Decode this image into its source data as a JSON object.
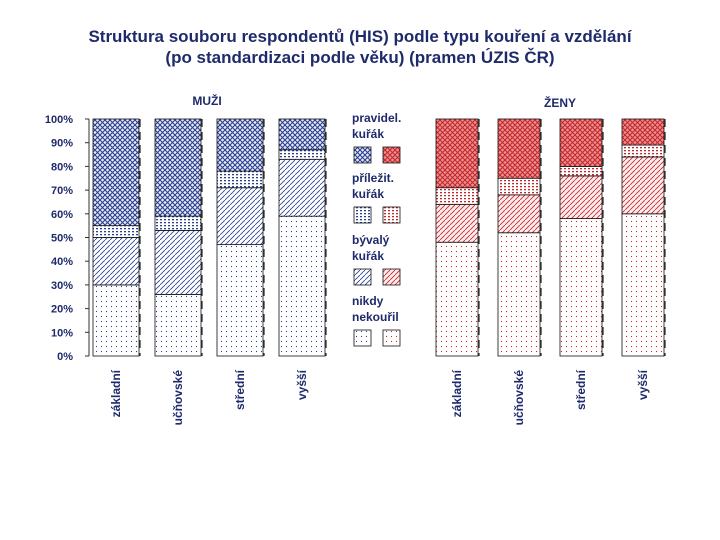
{
  "title_line1": "Struktura souboru respondentů (HIS) podle typu kouření a vzdělání",
  "title_line2": "(po standardizaci podle věku) (pramen ÚZIS ČR)",
  "colors": {
    "men": "#2a3f8f",
    "women": "#c0262c",
    "text": "#1f2a6b",
    "axis": "#333333"
  },
  "chart_data": [
    {
      "type": "bar",
      "stacked": true,
      "title": "MUŽI",
      "categories": [
        "základní",
        "učňovské",
        "střední",
        "vyšší"
      ],
      "ylim": [
        0,
        100
      ],
      "yticks": [
        "0%",
        "10%",
        "20%",
        "30%",
        "40%",
        "50%",
        "60%",
        "70%",
        "80%",
        "90%",
        "100%"
      ],
      "grid": false,
      "series": [
        {
          "name": "nikdy nekouřil",
          "values": [
            30,
            26,
            47,
            59
          ]
        },
        {
          "name": "bývalý kuřák",
          "values": [
            20,
            27,
            24,
            24
          ]
        },
        {
          "name": "příležit. kuřák",
          "values": [
            5,
            6,
            7,
            4
          ]
        },
        {
          "name": "pravidel. kuřák",
          "values": [
            45,
            41,
            22,
            13
          ]
        }
      ]
    },
    {
      "type": "bar",
      "stacked": true,
      "title": "ŽENY",
      "categories": [
        "základní",
        "učňovské",
        "střední",
        "vyšší"
      ],
      "ylim": [
        0,
        100
      ],
      "grid": false,
      "series": [
        {
          "name": "nikdy nekouřil",
          "values": [
            48,
            52,
            58,
            60
          ]
        },
        {
          "name": "bývalý kuřák",
          "values": [
            16,
            16,
            18,
            24
          ]
        },
        {
          "name": "příležit. kuřák",
          "values": [
            7,
            7,
            4,
            5
          ]
        },
        {
          "name": "pravidel. kuřák",
          "values": [
            29,
            25,
            20,
            11
          ]
        }
      ]
    }
  ],
  "legend": {
    "placement": "center",
    "items": [
      {
        "line1": "pravidel.",
        "line2": "kuřák"
      },
      {
        "line1": "příležit.",
        "line2": "kuřák"
      },
      {
        "line1": "bývalý",
        "line2": "kuřák"
      },
      {
        "line1": "nikdy",
        "line2": "nekouřil"
      }
    ]
  }
}
